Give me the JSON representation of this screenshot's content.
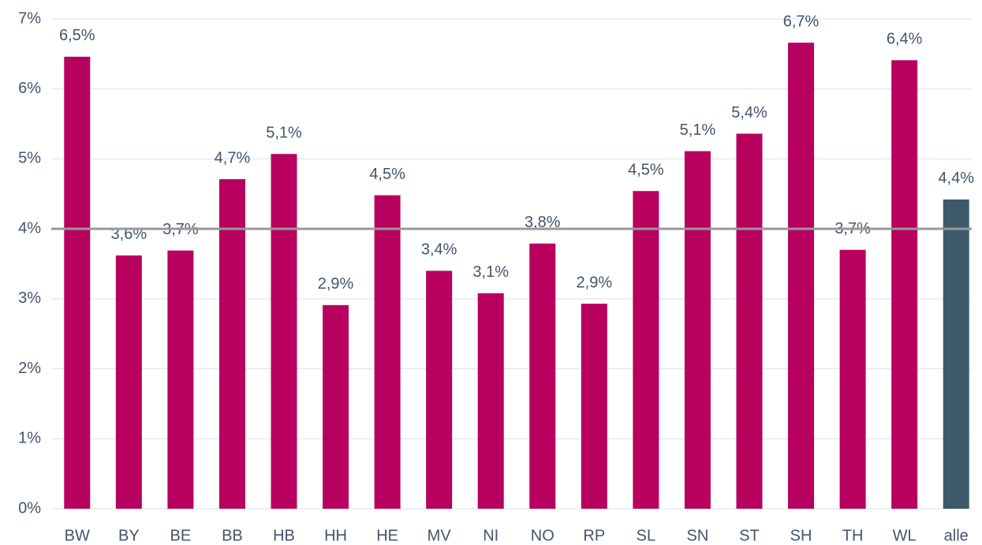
{
  "chart_data": {
    "type": "bar",
    "categories": [
      "BW",
      "BY",
      "BE",
      "BB",
      "HB",
      "HH",
      "HE",
      "MV",
      "NI",
      "NO",
      "RP",
      "SL",
      "SN",
      "ST",
      "SH",
      "TH",
      "WL",
      "alle"
    ],
    "values": [
      6.46,
      3.62,
      3.69,
      4.71,
      5.07,
      2.91,
      4.48,
      3.4,
      3.08,
      3.79,
      2.93,
      4.54,
      5.11,
      5.36,
      6.66,
      3.7,
      6.41,
      4.42
    ],
    "value_labels": [
      "6,5%",
      "3,6%",
      "3,7%",
      "4,7%",
      "5,1%",
      "2,9%",
      "4,5%",
      "3,4%",
      "3,1%",
      "3,8%",
      "2,9%",
      "4,5%",
      "5,1%",
      "5,4%",
      "6,7%",
      "3,7%",
      "6,4%",
      "4,4%"
    ],
    "colors": [
      "#b8005f",
      "#b8005f",
      "#b8005f",
      "#b8005f",
      "#b8005f",
      "#b8005f",
      "#b8005f",
      "#b8005f",
      "#b8005f",
      "#b8005f",
      "#b8005f",
      "#b8005f",
      "#b8005f",
      "#b8005f",
      "#b8005f",
      "#b8005f",
      "#b8005f",
      "#3d5a6b"
    ],
    "ylim": [
      0,
      7
    ],
    "yticks": [
      {
        "value": 0,
        "label": "0%"
      },
      {
        "value": 1,
        "label": "1%"
      },
      {
        "value": 2,
        "label": "2%"
      },
      {
        "value": 3,
        "label": "3%"
      },
      {
        "value": 4,
        "label": "4%"
      },
      {
        "value": 5,
        "label": "5%"
      },
      {
        "value": 6,
        "label": "6%"
      },
      {
        "value": 7,
        "label": "7%"
      }
    ],
    "grid": true,
    "reference_line": {
      "value": 4,
      "color": "#999999"
    }
  }
}
